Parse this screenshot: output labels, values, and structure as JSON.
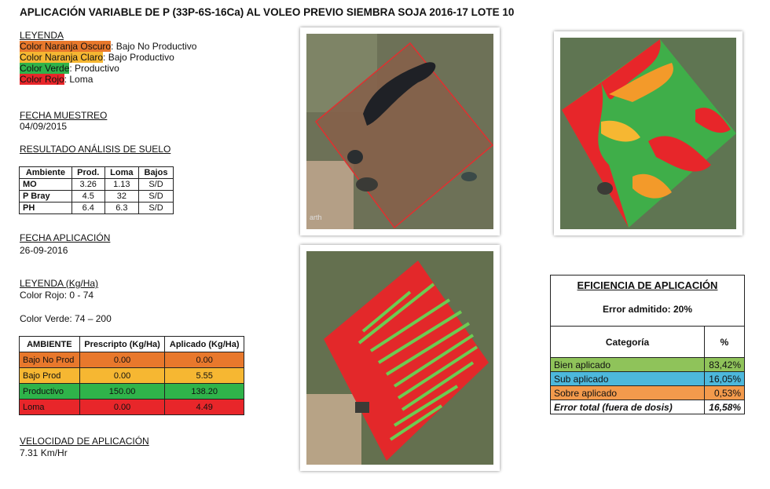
{
  "title": "APLICACIÓN VARIABLE DE P (33P-6S-16Ca) AL VOLEO PREVIO SIEMBRA SOJA 2016-17 LOTE 10",
  "leyenda": {
    "heading": "LEYENDA",
    "items": [
      {
        "label": "Color Naranja Oscuro",
        "text": ": Bajo No Productivo",
        "color": "#e8782c"
      },
      {
        "label": "Color Naranja Claro",
        "text": ": Bajo Productivo",
        "color": "#f6b732"
      },
      {
        "label": "Color Verde",
        "text": ": Productivo",
        "color": "#2fb34a"
      },
      {
        "label": "Color Rojo",
        "text": ": Loma",
        "color": "#e8262a"
      }
    ]
  },
  "fecha_muestreo": {
    "heading": "FECHA MUESTREO",
    "value": "04/09/2015"
  },
  "resultado": {
    "heading": "RESULTADO ANÁLISIS DE SUELO",
    "header": [
      "Ambiente",
      "Prod.",
      "Loma",
      "Bajos"
    ],
    "rows": [
      [
        "MO",
        "3.26",
        "1.13",
        "S/D"
      ],
      [
        "P Bray",
        "4.5",
        "32",
        "S/D"
      ],
      [
        "PH",
        "6.4",
        "6.3",
        "S/D"
      ]
    ]
  },
  "fecha_aplicacion": {
    "heading": "FECHA APLICACIÓN",
    "value": "26-09-2016"
  },
  "leyenda_kg": {
    "heading": "LEYENDA (Kg/Ha)",
    "lines": [
      "Color Rojo: 0 - 74",
      "Color Verde: 74 – 200"
    ]
  },
  "aplicacion": {
    "header": [
      "AMBIENTE",
      "Prescripto (Kg/Ha)",
      "Aplicado (Kg/Ha)"
    ],
    "rows": [
      [
        "Bajo No Prod",
        "0.00",
        "0.00"
      ],
      [
        "Bajo Prod",
        "0.00",
        "5.55"
      ],
      [
        "Productivo",
        "150.00",
        "138.20"
      ],
      [
        "Loma",
        "0.00",
        "4.49"
      ]
    ],
    "row_colors": [
      "#e8782c",
      "#f6b732",
      "#2fb34a",
      "#e8262a"
    ]
  },
  "velocidad": {
    "heading": "VELOCIDAD DE APLICACIÓN",
    "value": "7.31 Km/Hr"
  },
  "eficiencia": {
    "title": "EFICIENCIA DE APLICACIÓN",
    "subtitle": "Error admitido: 20%",
    "header": [
      "Categoría",
      "%"
    ],
    "rows": [
      [
        "Bien aplicado",
        "83,42%"
      ],
      [
        "Sub aplicado",
        "16,05%"
      ],
      [
        "Sobre aplicado",
        "0,53%"
      ],
      [
        "Error total (fuera de dosis)",
        "16,58%"
      ]
    ],
    "row_colors": [
      "#8fc35a",
      "#4db8dc",
      "#f39a4c",
      "#ffffff"
    ]
  }
}
